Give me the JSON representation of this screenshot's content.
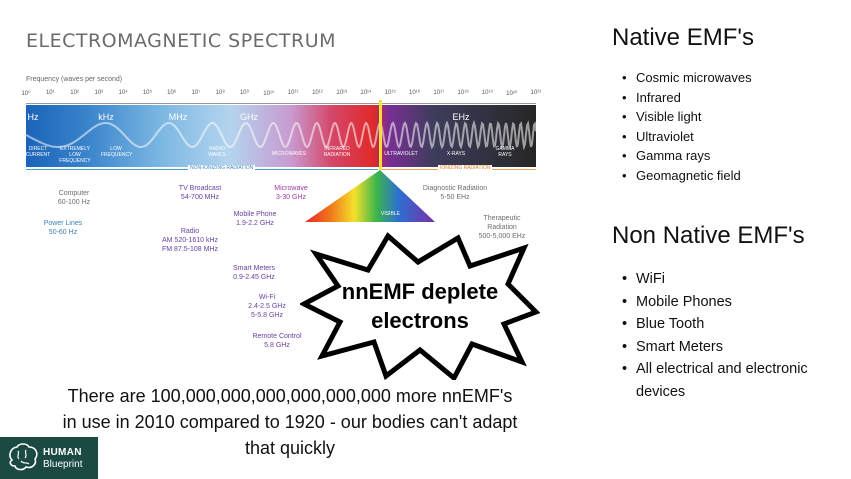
{
  "spectrum": {
    "title": "ELECTROMAGNETIC SPECTRUM",
    "freq_caption": "Frequency (waves per second)",
    "ticks": [
      "10⁰",
      "10¹",
      "10²",
      "10³",
      "10⁴",
      "10⁵",
      "10⁶",
      "10⁷",
      "10⁸",
      "10⁹",
      "10¹⁰",
      "10¹¹",
      "10¹²",
      "10¹³",
      "10¹⁴",
      "10¹⁵",
      "10¹⁶",
      "10¹⁷",
      "10¹⁸",
      "10¹⁹",
      "10²⁰",
      "10²¹"
    ],
    "units": [
      "Hz",
      "kHz",
      "MHz",
      "GHz",
      "EHz"
    ],
    "band_labels": {
      "direct_current": "DIRECT CURRENT",
      "extremely_low": "EXTREMELY LOW FREQUENCY",
      "low": "LOW FREQUENCY",
      "radio_waves": "RADIO WAVES",
      "microwaves": "MICROWAVES",
      "infrared": "INFRARED RADIATION",
      "ultraviolet": "ULTRAVIOLET",
      "xrays": "X-RAYS",
      "gamma": "GAMMA RAYS",
      "visible": "VISIBLE"
    },
    "non_ionizing": "NON-IONIZING RADIATION",
    "ionizing": "IONIZING RADIATION",
    "sources": {
      "computer": [
        "Computer",
        "60-100 Hz"
      ],
      "power_lines": [
        "Power Lines",
        "50-60 Hz"
      ],
      "tv": [
        "TV Broadcast",
        "54-700 MHz"
      ],
      "microwave": [
        "Microwave",
        "3-30 GHz"
      ],
      "radio": [
        "Radio",
        "AM 520-1610 kHz",
        "FM 87.5-108 MHz"
      ],
      "mobile": [
        "Mobile Phone",
        "1.9-2.2 GHz"
      ],
      "smart_meters": [
        "Smart Meters",
        "0.9-2.45 GHz"
      ],
      "wifi": [
        "Wi-Fi",
        "2.4-2.5 GHz",
        "5-5.8 GHz"
      ],
      "remote": [
        "Remote Control",
        "5.8 GHz"
      ],
      "diagnostic": [
        "Diagnostic Radiation",
        "5-50 EHz"
      ],
      "therapeutic": [
        "Therapeutic",
        "Radiation",
        "500-5,000 EHz"
      ]
    }
  },
  "burst": {
    "line1": "nnEMF deplete",
    "line2": "electrons"
  },
  "native": {
    "heading": "Native EMF's",
    "items": [
      "Cosmic microwaves",
      "Infrared",
      "Visible light",
      "Ultraviolet",
      "Gamma rays",
      "Geomagnetic field"
    ]
  },
  "non_native": {
    "heading": "Non Native EMF's",
    "items": [
      "WiFi",
      "Mobile Phones",
      "Blue Tooth",
      "Smart Meters",
      "All electrical and electronic devices"
    ]
  },
  "statement": "There are 100,000,000,000,000,000,000 more nnEMF's in use in 2010 compared to 1920 - our bodies can't adapt that quickly",
  "logo": {
    "line1": "HUMAN",
    "line2": "Blueprint"
  },
  "colors": {
    "logo_bg": "#1b4a43",
    "band_start": "#1a63b8",
    "band_end": "#262626"
  }
}
